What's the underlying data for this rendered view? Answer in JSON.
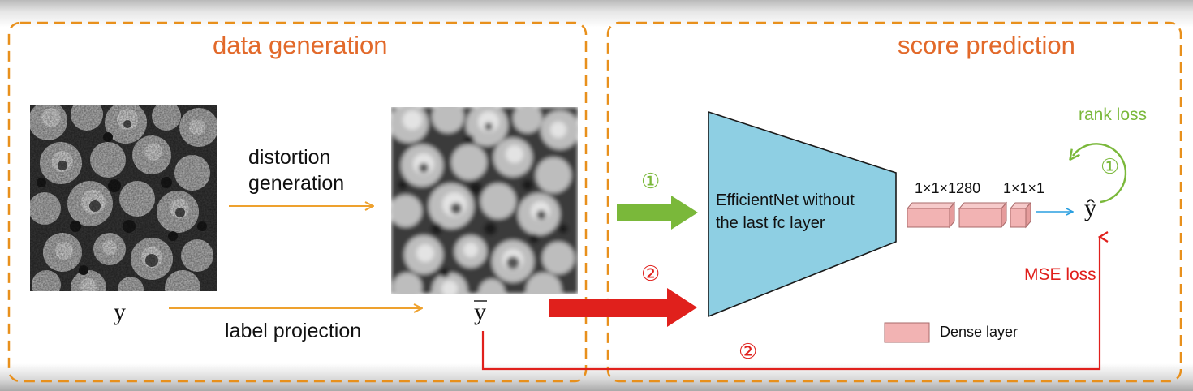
{
  "panels": {
    "left": {
      "title": "data generation"
    },
    "right": {
      "title": "score prediction"
    }
  },
  "labels": {
    "y": "y",
    "y_bar": "y",
    "y_hat": "ŷ",
    "distortion_line1": "distortion",
    "distortion_line2": "generation",
    "label_projection": "label projection",
    "efficientnet_line1": "EfficientNet without",
    "efficientnet_line2": "the last fc layer",
    "dense_dim1": "1×1×1280",
    "dense_dim2": "1×1×1",
    "rank_loss": "rank loss",
    "mse_loss": "MSE loss",
    "legend_dense": "Dense layer",
    "circled_one": "①",
    "circled_two": "②"
  },
  "colors": {
    "panel_border": "#e8901c",
    "title": "#e2692a",
    "orange_arrow": "#eea12e",
    "green": "#7ab83a",
    "red": "#e0201c",
    "network": "#8ecfe3",
    "dense": "#f2b3b3",
    "blue_arrow": "#2a9fe0"
  },
  "icons": {
    "original_image": "sem-microstructure-image",
    "blurred_image": "blurred-microstructure-image"
  }
}
